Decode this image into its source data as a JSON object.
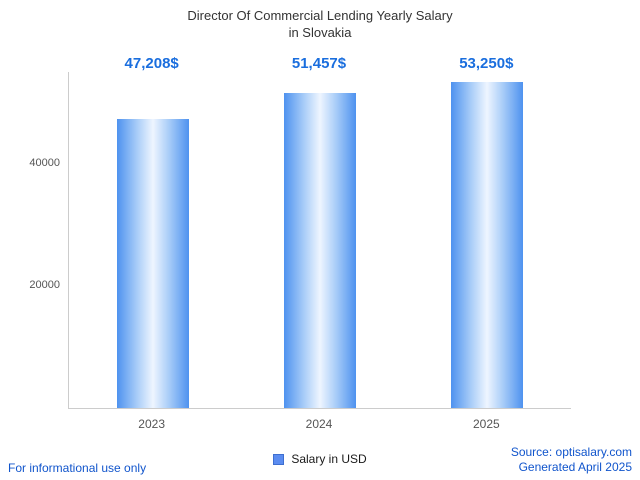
{
  "title": {
    "line1": "Director Of Commercial Lending Yearly Salary",
    "line2": "in Slovakia"
  },
  "chart_data": {
    "type": "bar",
    "title": "Director Of Commercial Lending Yearly Salary in Slovakia",
    "categories": [
      "2023",
      "2024",
      "2025"
    ],
    "values": [
      47208,
      51457,
      53250
    ],
    "value_labels": [
      "47,208$",
      "51,457$",
      "53,250$"
    ],
    "series_name": "Salary in USD",
    "xlabel": "",
    "ylabel": "",
    "ylim": [
      0,
      54850
    ],
    "yticks": [
      20000,
      40000
    ],
    "ytick_labels": [
      "20000",
      "40000"
    ],
    "grid": false,
    "legend_position": "bottom",
    "bar_color_edge": "#4e92ef",
    "bar_color_center": "#eef5ff",
    "value_label_color": "#1a6ede"
  },
  "legend": {
    "label": "Salary in USD"
  },
  "footer": {
    "disclaimer": "For informational use only",
    "source": "Source: optisalary.com",
    "generated": "Generated April 2025"
  }
}
